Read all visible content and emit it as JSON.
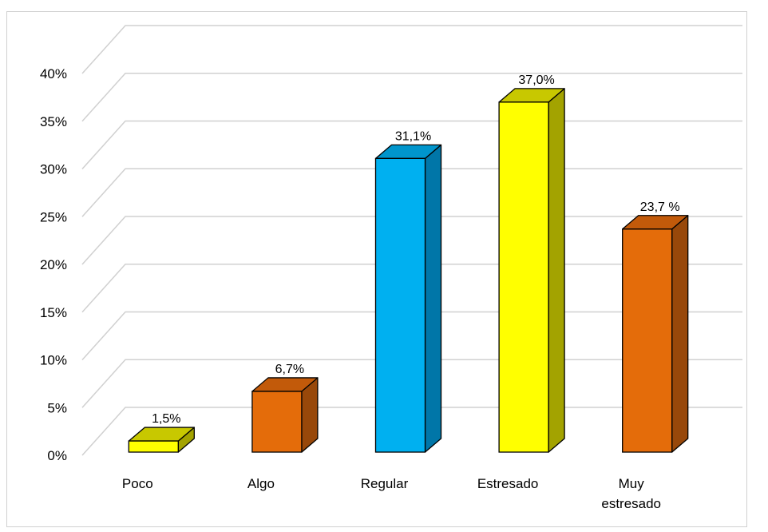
{
  "chart_data": {
    "type": "bar",
    "title": "",
    "xlabel": "",
    "ylabel": "",
    "ylim": [
      0,
      40
    ],
    "grid": true,
    "three_d": true,
    "yticks": [
      "0%",
      "5%",
      "10%",
      "15%",
      "20%",
      "25%",
      "30%",
      "35%",
      "40%"
    ],
    "categories": [
      {
        "lines": [
          "Poco"
        ]
      },
      {
        "lines": [
          "Algo"
        ]
      },
      {
        "lines": [
          "Regular"
        ]
      },
      {
        "lines": [
          "Estresado"
        ]
      },
      {
        "lines": [
          "Muy",
          "estresado"
        ]
      }
    ],
    "values": [
      1.5,
      6.7,
      31.1,
      37.0,
      23.7
    ],
    "data_labels": [
      "1,5%",
      "6,7%",
      "31,1%",
      "37,0%",
      "23,7 %"
    ],
    "colors": [
      {
        "front": "#ffff00",
        "side": "#a3a300",
        "top": "#c8c800"
      },
      {
        "front": "#e46c0a",
        "side": "#98480a",
        "top": "#c25a0a"
      },
      {
        "front": "#00b0f0",
        "side": "#0076a8",
        "top": "#0095cc"
      },
      {
        "front": "#ffff00",
        "side": "#a3a300",
        "top": "#c8c800"
      },
      {
        "front": "#e46c0a",
        "side": "#98480a",
        "top": "#c25a0a"
      }
    ]
  }
}
